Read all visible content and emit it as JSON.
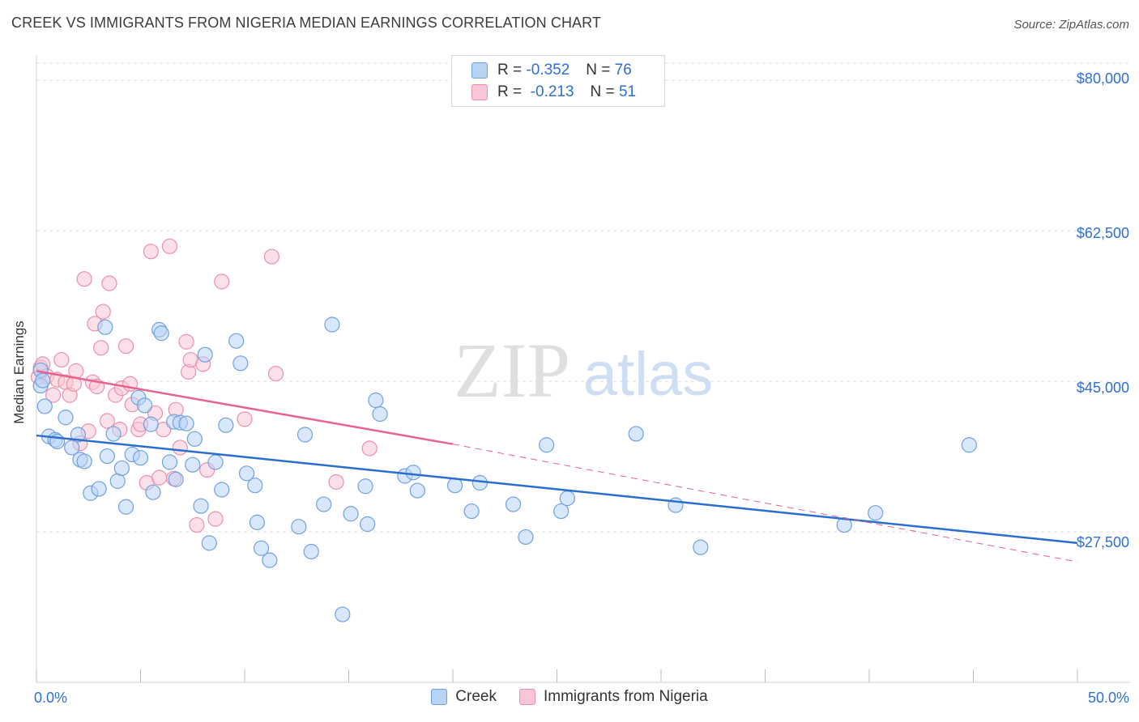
{
  "header": {
    "title": "CREEK VS IMMIGRANTS FROM NIGERIA MEDIAN EARNINGS CORRELATION CHART",
    "source": "Source: ZipAtlas.com"
  },
  "watermark": {
    "zip": "ZIP",
    "atlas": "atlas"
  },
  "legend_top": {
    "rows": [
      {
        "r_label": "R =",
        "r_value": "-0.352",
        "n_label": "N =",
        "n_value": "76"
      },
      {
        "r_label": "R =",
        "r_value": "-0.213",
        "n_label": "N =",
        "n_value": "51"
      }
    ]
  },
  "colors": {
    "creek_fill": "#b8d4f5",
    "creek_stroke": "#6fa0e0",
    "creek_line": "#2a6fd0",
    "nigeria_fill": "#f9c6d6",
    "nigeria_stroke": "#ec8fab",
    "nigeria_line": "#e8628c",
    "axis_text": "#2e6fd6",
    "grid": "#dddddd"
  },
  "chart_data": {
    "type": "scatter",
    "title": "CREEK VS IMMIGRANTS FROM NIGERIA MEDIAN EARNINGS CORRELATION CHART",
    "xlabel": "",
    "ylabel": "Median Earnings",
    "xlim": [
      0,
      50
    ],
    "ylim": [
      10000,
      82000
    ],
    "x_tick_labels": [
      "0.0%",
      "50.0%"
    ],
    "y_ticks": [
      27500,
      45000,
      62500,
      80000
    ],
    "y_tick_labels": [
      "$27,500",
      "$45,000",
      "$62,500",
      "$80,000"
    ],
    "grid": true,
    "legend_position": "top-center",
    "series": [
      {
        "name": "Creek",
        "r": -0.352,
        "n": 76,
        "trend": {
          "x": [
            0,
            50
          ],
          "y": [
            38700,
            26200
          ]
        },
        "points": [
          [
            0.2,
            44.5
          ],
          [
            0.4,
            42.1
          ],
          [
            0.6,
            38.6
          ],
          [
            0.9,
            38.2
          ],
          [
            1.0,
            38.0
          ],
          [
            1.4,
            40.8
          ],
          [
            1.7,
            37.3
          ],
          [
            2.0,
            38.8
          ],
          [
            2.1,
            35.9
          ],
          [
            2.3,
            35.7
          ],
          [
            2.6,
            32.0
          ],
          [
            3.0,
            32.5
          ],
          [
            3.3,
            51.3
          ],
          [
            3.4,
            36.3
          ],
          [
            3.7,
            38.9
          ],
          [
            3.9,
            33.4
          ],
          [
            4.1,
            34.9
          ],
          [
            4.3,
            30.4
          ],
          [
            4.6,
            36.5
          ],
          [
            4.9,
            43.1
          ],
          [
            5.0,
            36.1
          ],
          [
            5.2,
            42.2
          ],
          [
            5.5,
            40.0
          ],
          [
            5.6,
            32.1
          ],
          [
            5.9,
            51.0
          ],
          [
            6.0,
            50.6
          ],
          [
            6.4,
            35.6
          ],
          [
            6.6,
            40.3
          ],
          [
            6.7,
            33.6
          ],
          [
            6.9,
            40.2
          ],
          [
            7.2,
            40.1
          ],
          [
            7.5,
            35.3
          ],
          [
            7.6,
            38.3
          ],
          [
            7.9,
            30.5
          ],
          [
            8.1,
            48.1
          ],
          [
            8.3,
            26.2
          ],
          [
            8.6,
            35.6
          ],
          [
            8.9,
            32.4
          ],
          [
            9.1,
            39.9
          ],
          [
            9.6,
            49.7
          ],
          [
            9.8,
            47.1
          ],
          [
            10.1,
            34.3
          ],
          [
            10.5,
            32.9
          ],
          [
            10.6,
            28.6
          ],
          [
            10.8,
            25.6
          ],
          [
            11.2,
            24.2
          ],
          [
            12.6,
            28.1
          ],
          [
            12.9,
            38.8
          ],
          [
            13.2,
            25.2
          ],
          [
            13.8,
            30.7
          ],
          [
            14.2,
            51.6
          ],
          [
            14.7,
            17.9
          ],
          [
            15.1,
            29.6
          ],
          [
            15.8,
            32.8
          ],
          [
            15.9,
            28.4
          ],
          [
            16.3,
            42.8
          ],
          [
            16.5,
            41.2
          ],
          [
            17.7,
            34.0
          ],
          [
            18.1,
            34.4
          ],
          [
            18.3,
            32.3
          ],
          [
            20.1,
            32.9
          ],
          [
            20.9,
            29.9
          ],
          [
            21.3,
            33.2
          ],
          [
            22.9,
            30.7
          ],
          [
            23.5,
            26.9
          ],
          [
            24.5,
            37.6
          ],
          [
            25.2,
            29.9
          ],
          [
            25.5,
            31.4
          ],
          [
            28.8,
            38.9
          ],
          [
            30.7,
            30.6
          ],
          [
            31.9,
            25.7
          ],
          [
            38.8,
            28.3
          ],
          [
            40.3,
            29.7
          ],
          [
            44.8,
            37.6
          ],
          [
            0.2,
            46.3
          ],
          [
            0.3,
            45.1
          ]
        ]
      },
      {
        "name": "Immigrants from Nigeria",
        "r": -0.213,
        "n": 51,
        "trend": {
          "x": [
            0,
            20
          ],
          "y": [
            46200,
            37700
          ]
        },
        "trend_dashed": {
          "x": [
            20,
            50
          ],
          "y": [
            37700,
            24000
          ]
        },
        "points": [
          [
            0.1,
            45.5
          ],
          [
            0.2,
            46.6
          ],
          [
            0.3,
            47.0
          ],
          [
            0.5,
            45.6
          ],
          [
            0.8,
            43.4
          ],
          [
            1.0,
            45.2
          ],
          [
            1.2,
            47.5
          ],
          [
            1.4,
            44.9
          ],
          [
            1.6,
            43.4
          ],
          [
            1.8,
            44.7
          ],
          [
            1.9,
            46.2
          ],
          [
            2.1,
            37.8
          ],
          [
            2.3,
            56.9
          ],
          [
            2.5,
            39.2
          ],
          [
            2.7,
            44.9
          ],
          [
            2.8,
            51.7
          ],
          [
            2.9,
            44.4
          ],
          [
            3.1,
            48.9
          ],
          [
            3.2,
            53.1
          ],
          [
            3.4,
            40.4
          ],
          [
            3.5,
            56.4
          ],
          [
            3.8,
            43.4
          ],
          [
            4.0,
            39.4
          ],
          [
            4.1,
            44.2
          ],
          [
            4.3,
            49.1
          ],
          [
            4.5,
            44.7
          ],
          [
            4.6,
            42.3
          ],
          [
            4.9,
            39.4
          ],
          [
            5.0,
            40.0
          ],
          [
            5.3,
            33.2
          ],
          [
            5.5,
            60.1
          ],
          [
            5.7,
            41.3
          ],
          [
            5.9,
            33.8
          ],
          [
            6.1,
            39.4
          ],
          [
            6.4,
            60.7
          ],
          [
            6.6,
            33.7
          ],
          [
            6.7,
            41.7
          ],
          [
            6.9,
            37.3
          ],
          [
            7.2,
            49.6
          ],
          [
            7.3,
            46.1
          ],
          [
            7.4,
            47.5
          ],
          [
            7.7,
            28.3
          ],
          [
            8.0,
            47.0
          ],
          [
            8.2,
            34.7
          ],
          [
            8.6,
            29.0
          ],
          [
            8.9,
            56.6
          ],
          [
            10.0,
            40.6
          ],
          [
            11.3,
            59.5
          ],
          [
            11.5,
            45.9
          ],
          [
            14.4,
            33.3
          ],
          [
            16.0,
            37.2
          ]
        ]
      }
    ]
  },
  "bottom_legend": [
    {
      "label": "Creek"
    },
    {
      "label": "Immigrants from Nigeria"
    }
  ]
}
